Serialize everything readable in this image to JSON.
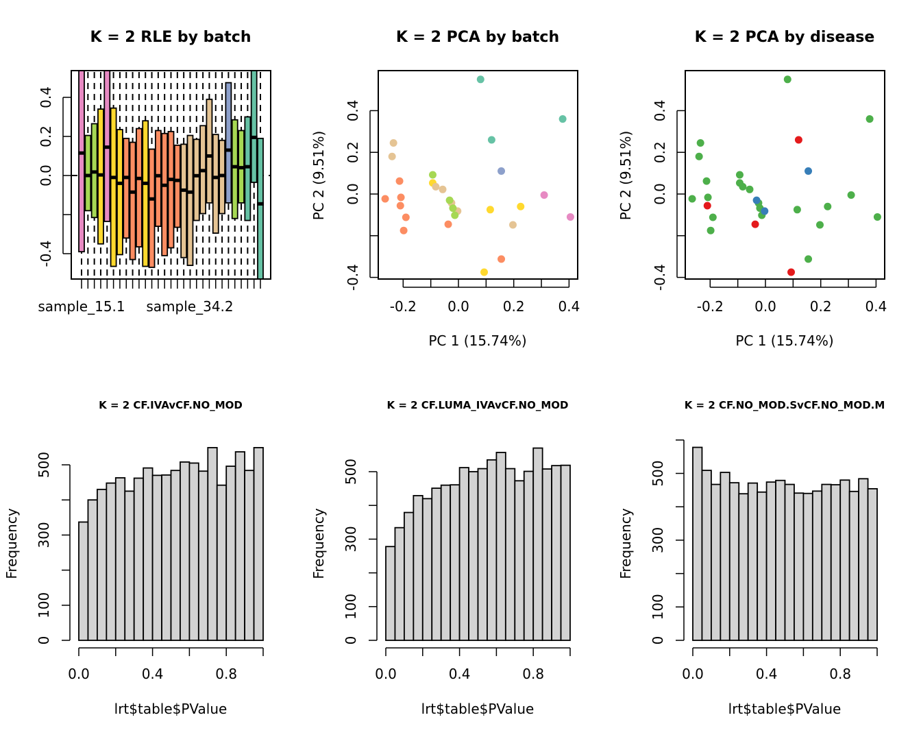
{
  "chart_data": [
    {
      "id": "rle",
      "type": "box",
      "title": "K = 2 RLE by batch",
      "xlabel": "",
      "ylabel": "",
      "ylim": [
        -0.53,
        0.54
      ],
      "yticks": [
        -0.4,
        -0.2,
        0.0,
        0.2,
        0.4
      ],
      "ytick_labels": [
        "-0.4",
        "",
        "0.0",
        "0.2",
        "0.4"
      ],
      "xtick_labels_shown": [
        "sample_15.1",
        "sample_34.2"
      ],
      "reference_line": 0.0,
      "boxes": [
        {
          "color": "#E78AC3",
          "q1": -0.39,
          "median": 0.115,
          "q3": 0.6
        },
        {
          "color": "#A6D854",
          "q1": -0.18,
          "median": 0.0,
          "q3": 0.205
        },
        {
          "color": "#A6D854",
          "q1": -0.215,
          "median": 0.018,
          "q3": 0.265
        },
        {
          "color": "#FFD92F",
          "q1": -0.35,
          "median": 0.003,
          "q3": 0.34
        },
        {
          "color": "#E78AC3",
          "q1": -0.235,
          "median": 0.145,
          "q3": 0.6
        },
        {
          "color": "#FFD92F",
          "q1": -0.465,
          "median": -0.01,
          "q3": 0.345
        },
        {
          "color": "#FFD92F",
          "q1": -0.405,
          "median": -0.04,
          "q3": 0.235
        },
        {
          "color": "#FC8D62",
          "q1": -0.32,
          "median": -0.01,
          "q3": 0.19
        },
        {
          "color": "#FC8D62",
          "q1": -0.43,
          "median": -0.085,
          "q3": 0.17
        },
        {
          "color": "#FC8D62",
          "q1": -0.365,
          "median": -0.015,
          "q3": 0.24
        },
        {
          "color": "#FFD92F",
          "q1": -0.465,
          "median": -0.04,
          "q3": 0.28
        },
        {
          "color": "#FC8D62",
          "q1": -0.47,
          "median": -0.12,
          "q3": 0.135
        },
        {
          "color": "#FC8D62",
          "q1": -0.26,
          "median": -0.001,
          "q3": 0.23
        },
        {
          "color": "#FC8D62",
          "q1": -0.41,
          "median": -0.05,
          "q3": 0.215
        },
        {
          "color": "#FC8D62",
          "q1": -0.37,
          "median": -0.02,
          "q3": 0.225
        },
        {
          "color": "#FC8D62",
          "q1": -0.265,
          "median": -0.025,
          "q3": 0.155
        },
        {
          "color": "#E5C494",
          "q1": -0.42,
          "median": -0.075,
          "q3": 0.16
        },
        {
          "color": "#E5C494",
          "q1": -0.46,
          "median": -0.085,
          "q3": 0.205
        },
        {
          "color": "#E5C494",
          "q1": -0.23,
          "median": -0.001,
          "q3": 0.185
        },
        {
          "color": "#E5C494",
          "q1": -0.195,
          "median": 0.025,
          "q3": 0.255
        },
        {
          "color": "#E5C494",
          "q1": -0.14,
          "median": 0.1,
          "q3": 0.39
        },
        {
          "color": "#E5C494",
          "q1": -0.295,
          "median": -0.01,
          "q3": 0.21
        },
        {
          "color": "#E5C494",
          "q1": -0.195,
          "median": 0.0,
          "q3": 0.18
        },
        {
          "color": "#8DA0CB",
          "q1": -0.14,
          "median": 0.13,
          "q3": 0.475
        },
        {
          "color": "#A6D854",
          "q1": -0.22,
          "median": 0.045,
          "q3": 0.285
        },
        {
          "color": "#A6D854",
          "q1": -0.14,
          "median": 0.04,
          "q3": 0.23
        },
        {
          "color": "#66C2A5",
          "q1": -0.23,
          "median": 0.045,
          "q3": 0.3
        },
        {
          "color": "#66C2A5",
          "q1": -0.035,
          "median": 0.195,
          "q3": 0.6
        },
        {
          "color": "#66C2A5",
          "q1": -0.6,
          "median": -0.145,
          "q3": 0.19
        }
      ]
    },
    {
      "id": "pca_batch",
      "type": "scatter",
      "title": "K = 2 PCA by batch",
      "xlabel": "PC 1 (15.74%)",
      "ylabel": "PC 2 (9.51%)",
      "xlim": [
        -0.3,
        0.43
      ],
      "ylim": [
        -0.41,
        0.6
      ],
      "xticks": [
        -0.2,
        -0.1,
        0.0,
        0.1,
        0.2,
        0.3,
        0.4
      ],
      "xtick_labels": [
        "-0.2",
        "",
        "0.0",
        "",
        "0.2",
        "",
        "0.4"
      ],
      "yticks": [
        -0.4,
        -0.2,
        0.0,
        0.2,
        0.4
      ],
      "ytick_labels": [
        "-0.4",
        "",
        "0.0",
        "0.2",
        "0.4"
      ],
      "points": [
        {
          "x": 0.08,
          "y": 0.55,
          "color": "#66C2A5"
        },
        {
          "x": 0.377,
          "y": 0.36,
          "color": "#66C2A5"
        },
        {
          "x": 0.12,
          "y": 0.26,
          "color": "#66C2A5"
        },
        {
          "x": 0.155,
          "y": 0.11,
          "color": "#8DA0CB"
        },
        {
          "x": 0.31,
          "y": -0.005,
          "color": "#E78AC3"
        },
        {
          "x": 0.405,
          "y": -0.11,
          "color": "#E78AC3"
        },
        {
          "x": 0.115,
          "y": -0.075,
          "color": "#FFD92F"
        },
        {
          "x": 0.225,
          "y": -0.06,
          "color": "#FFD92F"
        },
        {
          "x": 0.093,
          "y": -0.375,
          "color": "#FFD92F"
        },
        {
          "x": -0.093,
          "y": 0.053,
          "color": "#FFD92F"
        },
        {
          "x": -0.235,
          "y": 0.245,
          "color": "#E5C494"
        },
        {
          "x": -0.24,
          "y": 0.18,
          "color": "#E5C494"
        },
        {
          "x": -0.082,
          "y": 0.035,
          "color": "#E5C494"
        },
        {
          "x": -0.057,
          "y": 0.022,
          "color": "#E5C494"
        },
        {
          "x": -0.025,
          "y": -0.043,
          "color": "#E5C494"
        },
        {
          "x": -0.003,
          "y": -0.082,
          "color": "#E5C494"
        },
        {
          "x": 0.197,
          "y": -0.148,
          "color": "#E5C494"
        },
        {
          "x": -0.093,
          "y": 0.092,
          "color": "#A6D854"
        },
        {
          "x": -0.032,
          "y": -0.03,
          "color": "#A6D854"
        },
        {
          "x": -0.02,
          "y": -0.068,
          "color": "#A6D854"
        },
        {
          "x": -0.013,
          "y": -0.102,
          "color": "#A6D854"
        },
        {
          "x": -0.213,
          "y": 0.062,
          "color": "#FC8D62"
        },
        {
          "x": -0.208,
          "y": -0.016,
          "color": "#FC8D62"
        },
        {
          "x": -0.21,
          "y": -0.056,
          "color": "#FC8D62"
        },
        {
          "x": -0.265,
          "y": -0.023,
          "color": "#FC8D62"
        },
        {
          "x": -0.19,
          "y": -0.112,
          "color": "#FC8D62"
        },
        {
          "x": -0.198,
          "y": -0.175,
          "color": "#FC8D62"
        },
        {
          "x": -0.037,
          "y": -0.145,
          "color": "#FC8D62"
        },
        {
          "x": 0.155,
          "y": -0.312,
          "color": "#FC8D62"
        }
      ]
    },
    {
      "id": "pca_disease",
      "type": "scatter",
      "title": "K = 2 PCA by disease",
      "xlabel": "PC 1 (15.74%)",
      "ylabel": "PC 2 (9.51%)",
      "xlim": [
        -0.3,
        0.43
      ],
      "ylim": [
        -0.41,
        0.6
      ],
      "xticks": [
        -0.2,
        -0.1,
        0.0,
        0.1,
        0.2,
        0.3,
        0.4
      ],
      "xtick_labels": [
        "-0.2",
        "",
        "0.0",
        "",
        "0.2",
        "",
        "0.4"
      ],
      "yticks": [
        -0.4,
        -0.2,
        0.0,
        0.2,
        0.4
      ],
      "ytick_labels": [
        "-0.4",
        "",
        "0.0",
        "0.2",
        "0.4"
      ],
      "points": [
        {
          "x": 0.08,
          "y": 0.55,
          "color": "#4DAF4A"
        },
        {
          "x": 0.377,
          "y": 0.36,
          "color": "#4DAF4A"
        },
        {
          "x": 0.12,
          "y": 0.26,
          "color": "#E41A1C"
        },
        {
          "x": 0.155,
          "y": 0.11,
          "color": "#377EB8"
        },
        {
          "x": 0.31,
          "y": -0.005,
          "color": "#4DAF4A"
        },
        {
          "x": 0.405,
          "y": -0.11,
          "color": "#4DAF4A"
        },
        {
          "x": 0.115,
          "y": -0.075,
          "color": "#4DAF4A"
        },
        {
          "x": 0.225,
          "y": -0.06,
          "color": "#4DAF4A"
        },
        {
          "x": 0.093,
          "y": -0.375,
          "color": "#E41A1C"
        },
        {
          "x": -0.093,
          "y": 0.053,
          "color": "#4DAF4A"
        },
        {
          "x": -0.235,
          "y": 0.245,
          "color": "#4DAF4A"
        },
        {
          "x": -0.24,
          "y": 0.18,
          "color": "#4DAF4A"
        },
        {
          "x": -0.082,
          "y": 0.035,
          "color": "#4DAF4A"
        },
        {
          "x": -0.057,
          "y": 0.022,
          "color": "#4DAF4A"
        },
        {
          "x": -0.025,
          "y": -0.043,
          "color": "#4DAF4A"
        },
        {
          "x": -0.02,
          "y": -0.068,
          "color": "#4DAF4A"
        },
        {
          "x": -0.013,
          "y": -0.102,
          "color": "#4DAF4A"
        },
        {
          "x": 0.197,
          "y": -0.148,
          "color": "#4DAF4A"
        },
        {
          "x": -0.093,
          "y": 0.092,
          "color": "#4DAF4A"
        },
        {
          "x": -0.032,
          "y": -0.03,
          "color": "#377EB8"
        },
        {
          "x": -0.003,
          "y": -0.082,
          "color": "#377EB8"
        },
        {
          "x": -0.213,
          "y": 0.062,
          "color": "#4DAF4A"
        },
        {
          "x": -0.208,
          "y": -0.016,
          "color": "#4DAF4A"
        },
        {
          "x": -0.21,
          "y": -0.056,
          "color": "#E41A1C"
        },
        {
          "x": -0.265,
          "y": -0.023,
          "color": "#4DAF4A"
        },
        {
          "x": -0.19,
          "y": -0.112,
          "color": "#4DAF4A"
        },
        {
          "x": -0.198,
          "y": -0.175,
          "color": "#4DAF4A"
        },
        {
          "x": -0.037,
          "y": -0.145,
          "color": "#E41A1C"
        },
        {
          "x": 0.155,
          "y": -0.312,
          "color": "#4DAF4A"
        }
      ]
    },
    {
      "id": "hist1",
      "type": "bar",
      "title": "K = 2 CF.IVAvCF.NO_MOD",
      "xlabel": "lrt$table$PValue",
      "ylabel": "Frequency",
      "xlim": [
        0,
        1
      ],
      "ylim": [
        0,
        545
      ],
      "xticks": [
        0.0,
        0.2,
        0.4,
        0.6,
        0.8,
        1.0
      ],
      "xtick_labels": [
        "0.0",
        "",
        "0.4",
        "",
        "0.8",
        ""
      ],
      "yticks": [
        0,
        100,
        200,
        300,
        400,
        500
      ],
      "ytick_labels": [
        "0",
        "100",
        "",
        "300",
        "",
        "500"
      ],
      "bin_width": 0.05,
      "values": [
        337,
        400,
        430,
        448,
        463,
        425,
        462,
        491,
        470,
        471,
        484,
        508,
        505,
        482,
        549,
        442,
        496,
        537,
        484,
        549
      ]
    },
    {
      "id": "hist2",
      "type": "bar",
      "title": "K = 2 CF.LUMA_IVAvCF.NO_MOD",
      "xlabel": "lrt$table$PValue",
      "ylabel": "Frequency",
      "xlim": [
        0,
        1
      ],
      "ylim": [
        0,
        570
      ],
      "xticks": [
        0.0,
        0.2,
        0.4,
        0.6,
        0.8,
        1.0
      ],
      "xtick_labels": [
        "0.0",
        "",
        "0.4",
        "",
        "0.8",
        ""
      ],
      "yticks": [
        0,
        100,
        200,
        300,
        400,
        500
      ],
      "ytick_labels": [
        "0",
        "100",
        "",
        "300",
        "",
        "500"
      ],
      "bin_width": 0.05,
      "values": [
        278,
        334,
        379,
        429,
        420,
        451,
        460,
        461,
        512,
        500,
        509,
        535,
        557,
        509,
        473,
        501,
        570,
        508,
        518,
        519
      ]
    },
    {
      "id": "hist3",
      "type": "bar",
      "title": "K = 2 CF.NO_MOD.SvCF.NO_MOD.M",
      "xlabel": "lrt$table$PValue",
      "ylabel": "Frequency",
      "xlim": [
        0,
        1
      ],
      "ylim": [
        0,
        600
      ],
      "xticks": [
        0.0,
        0.2,
        0.4,
        0.6,
        0.8,
        1.0
      ],
      "xtick_labels": [
        "0.0",
        "",
        "0.4",
        "",
        "0.8",
        ""
      ],
      "yticks": [
        0,
        100,
        200,
        300,
        400,
        500,
        600
      ],
      "ytick_labels": [
        "0",
        "100",
        "",
        "300",
        "",
        "500",
        ""
      ],
      "bin_width": 0.05,
      "values": [
        578,
        509,
        467,
        503,
        472,
        439,
        471,
        444,
        474,
        479,
        467,
        441,
        440,
        447,
        467,
        466,
        480,
        446,
        484,
        454
      ]
    }
  ]
}
